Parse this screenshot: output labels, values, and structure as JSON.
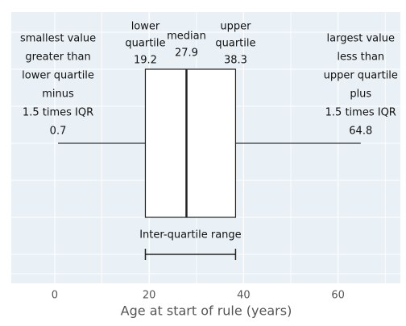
{
  "chart_data": {
    "type": "boxplot",
    "xlabel": "Age at start of rule (years)",
    "box": {
      "whislo": 0.7,
      "q1": 19.2,
      "med": 27.9,
      "q3": 38.3,
      "whishi": 64.8
    },
    "annotations": {
      "whislo": [
        "smallest value",
        "greater than",
        "lower quartile",
        "minus",
        "1.5 times IQR"
      ],
      "q1": [
        "lower",
        "quartile"
      ],
      "med": [
        "median"
      ],
      "q3": [
        "upper",
        "quartile"
      ],
      "whishi": [
        "largest value",
        "less than",
        "upper quartile",
        "plus",
        "1.5 times IQR"
      ]
    },
    "iqr_label": "Inter-quartile range",
    "xlim": [
      -9.2,
      73.2
    ],
    "xticks": [
      0,
      20,
      40,
      60
    ],
    "grid": true
  }
}
